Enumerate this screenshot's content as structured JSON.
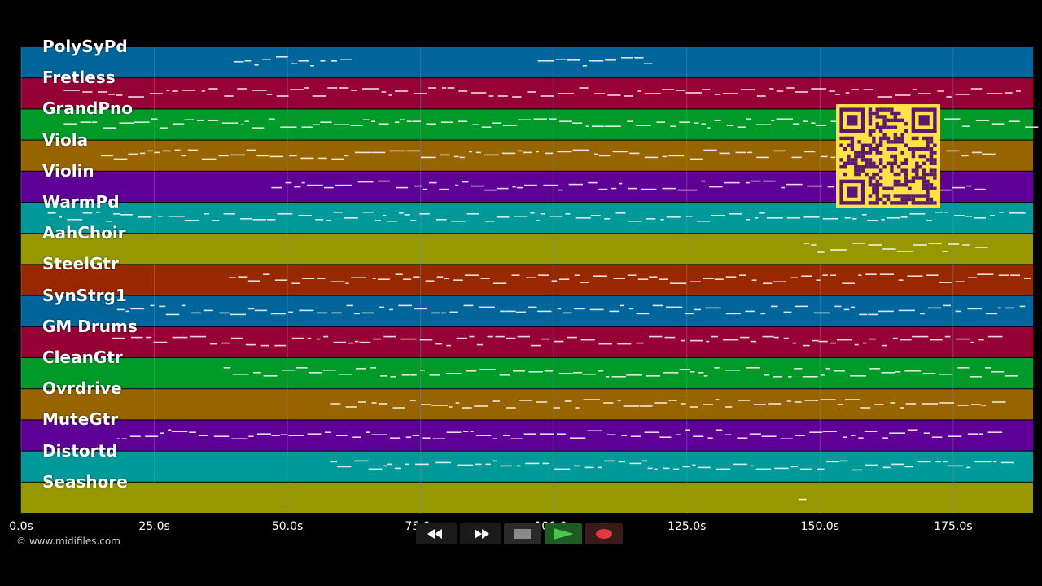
{
  "colors": {
    "background": "#000000",
    "notes": "#ffffff",
    "grid": "#6f8fa0",
    "qr_fg": "#5a1a6a",
    "qr_bg": "#ffe14a"
  },
  "tracks": [
    {
      "name": "PolySyPd",
      "color": "#00659a"
    },
    {
      "name": "Fretless",
      "color": "#970236"
    },
    {
      "name": "GrandPno",
      "color": "#009a29"
    },
    {
      "name": "Viola",
      "color": "#976400"
    },
    {
      "name": "Violin",
      "color": "#5e0096"
    },
    {
      "name": "WarmPd",
      "color": "#009999"
    },
    {
      "name": "AahChoir",
      "color": "#979700"
    },
    {
      "name": "SteelGtr",
      "color": "#982800"
    },
    {
      "name": "SynStrg1",
      "color": "#00659a"
    },
    {
      "name": "GM Drums",
      "color": "#970236"
    },
    {
      "name": "CleanGtr",
      "color": "#009a29"
    },
    {
      "name": "Ovrdrive",
      "color": "#976400"
    },
    {
      "name": "MuteGtr",
      "color": "#5e0096"
    },
    {
      "name": "Distortd",
      "color": "#009999"
    },
    {
      "name": "Seashore",
      "color": "#979700"
    }
  ],
  "timeline": {
    "max_seconds": 190,
    "tick_labels": [
      "0.0s",
      "25.0s",
      "50.0s",
      "75.0s",
      "100.0s",
      "125.0s",
      "150.0s",
      "175.0s"
    ]
  },
  "copyright": "© www.midifiles.com",
  "transport": {
    "rewind_icon": "rewind-icon",
    "forward_icon": "fast-forward-icon",
    "stop_icon": "stop-icon",
    "play_icon": "play-icon",
    "record_icon": "record-icon"
  }
}
